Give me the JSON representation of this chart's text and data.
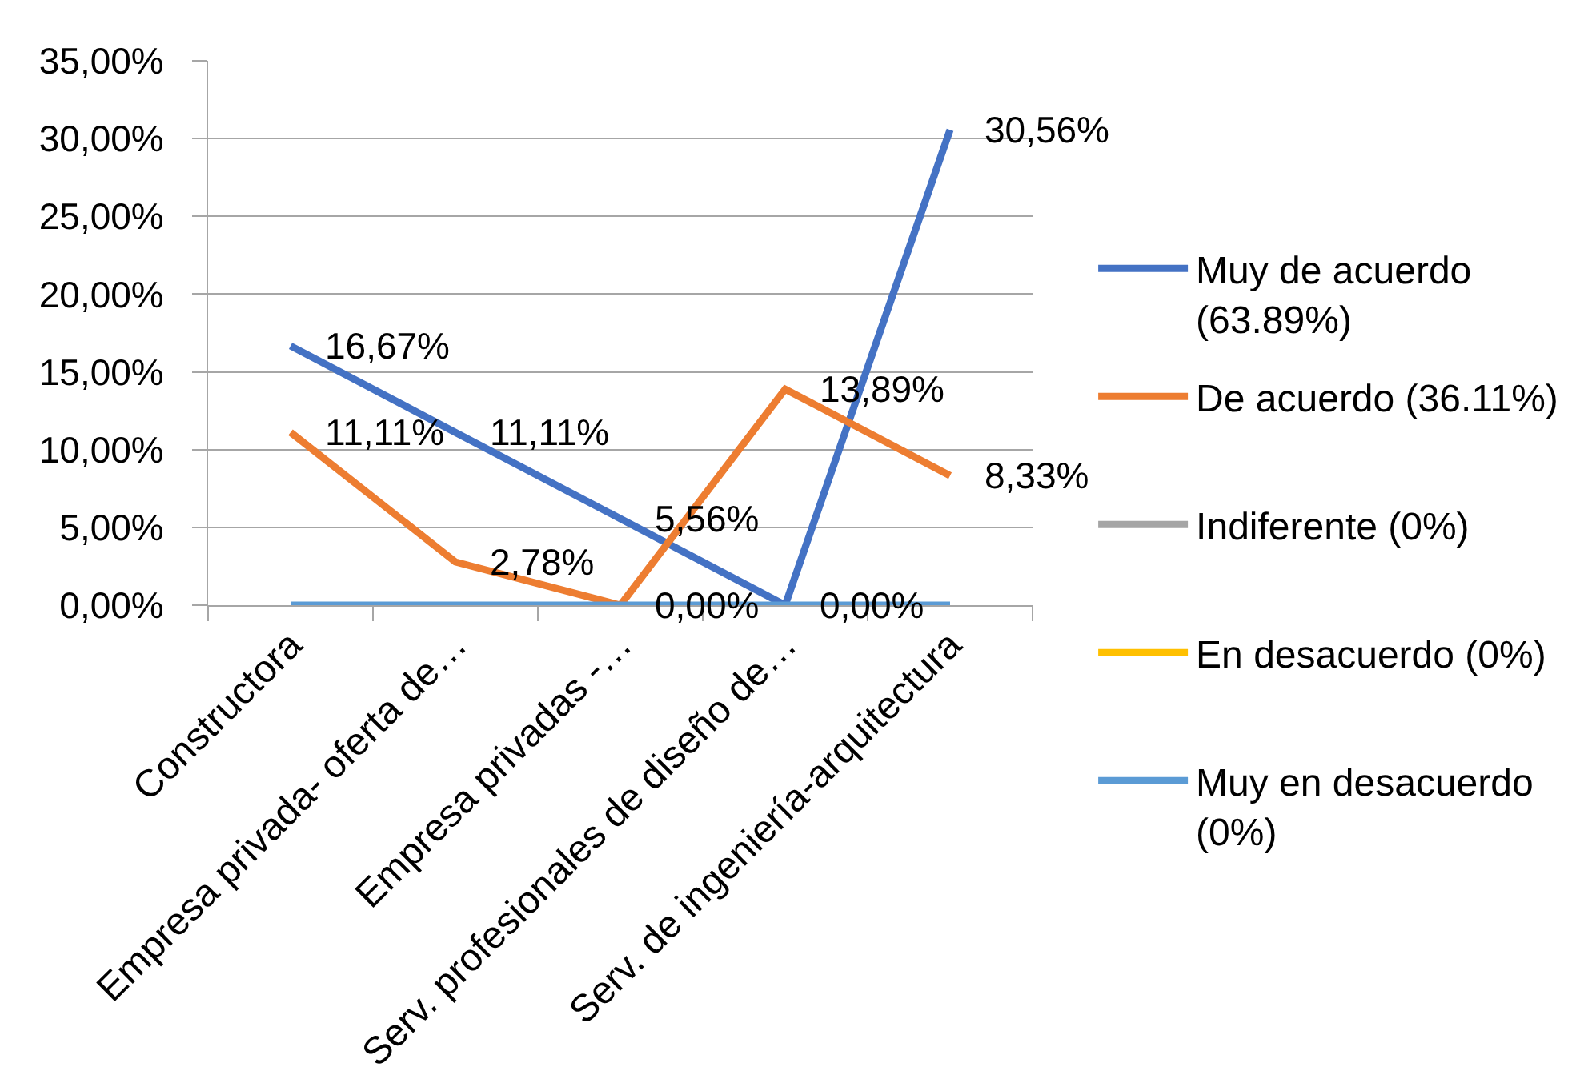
{
  "chart_data": {
    "type": "line",
    "categories": [
      "Constructora",
      "Empresa privada- oferta de…",
      "Empresa privadas -…",
      "Serv. profesionales de diseño de…",
      "Serv. de ingeniería-arquitectura"
    ],
    "series": [
      {
        "name": "Muy de acuerdo (63.89%)",
        "color": "#4472c4",
        "values": [
          16.67,
          11.11,
          5.56,
          0,
          30.56
        ],
        "value_labels": [
          "16,67%",
          "11,11%",
          "5,56%",
          "0,00%",
          "30,56%"
        ]
      },
      {
        "name": "De acuerdo (36.11%)",
        "color": "#ed7d31",
        "values": [
          11.11,
          2.78,
          0,
          13.89,
          8.33
        ],
        "value_labels": [
          "11,11%",
          "2,78%",
          "0,00%",
          "13,89%",
          "8,33%"
        ]
      },
      {
        "name": "Indiferente (0%)",
        "color": "#a5a5a5",
        "values": [
          null,
          null,
          null,
          null,
          null
        ]
      },
      {
        "name": "En desacuerdo (0%)",
        "color": "#ffc000",
        "values": [
          null,
          null,
          null,
          null,
          null
        ]
      },
      {
        "name": "Muy en desacuerdo (0%)",
        "color": "#5b9bd5",
        "values": [
          0,
          0,
          0,
          0,
          0
        ]
      }
    ],
    "ylim": [
      0,
      35
    ],
    "yticks": [
      {
        "value": 0,
        "label": "0,00%"
      },
      {
        "value": 5,
        "label": "5,00%"
      },
      {
        "value": 10,
        "label": "10,00%"
      },
      {
        "value": 15,
        "label": "15,00%"
      },
      {
        "value": 20,
        "label": "20,00%"
      },
      {
        "value": 25,
        "label": "25,00%"
      },
      {
        "value": 30,
        "label": "30,00%"
      },
      {
        "value": 35,
        "label": "35,00%"
      }
    ],
    "grid": "y",
    "legend": "right",
    "marker": "none",
    "line_style": "solid"
  }
}
